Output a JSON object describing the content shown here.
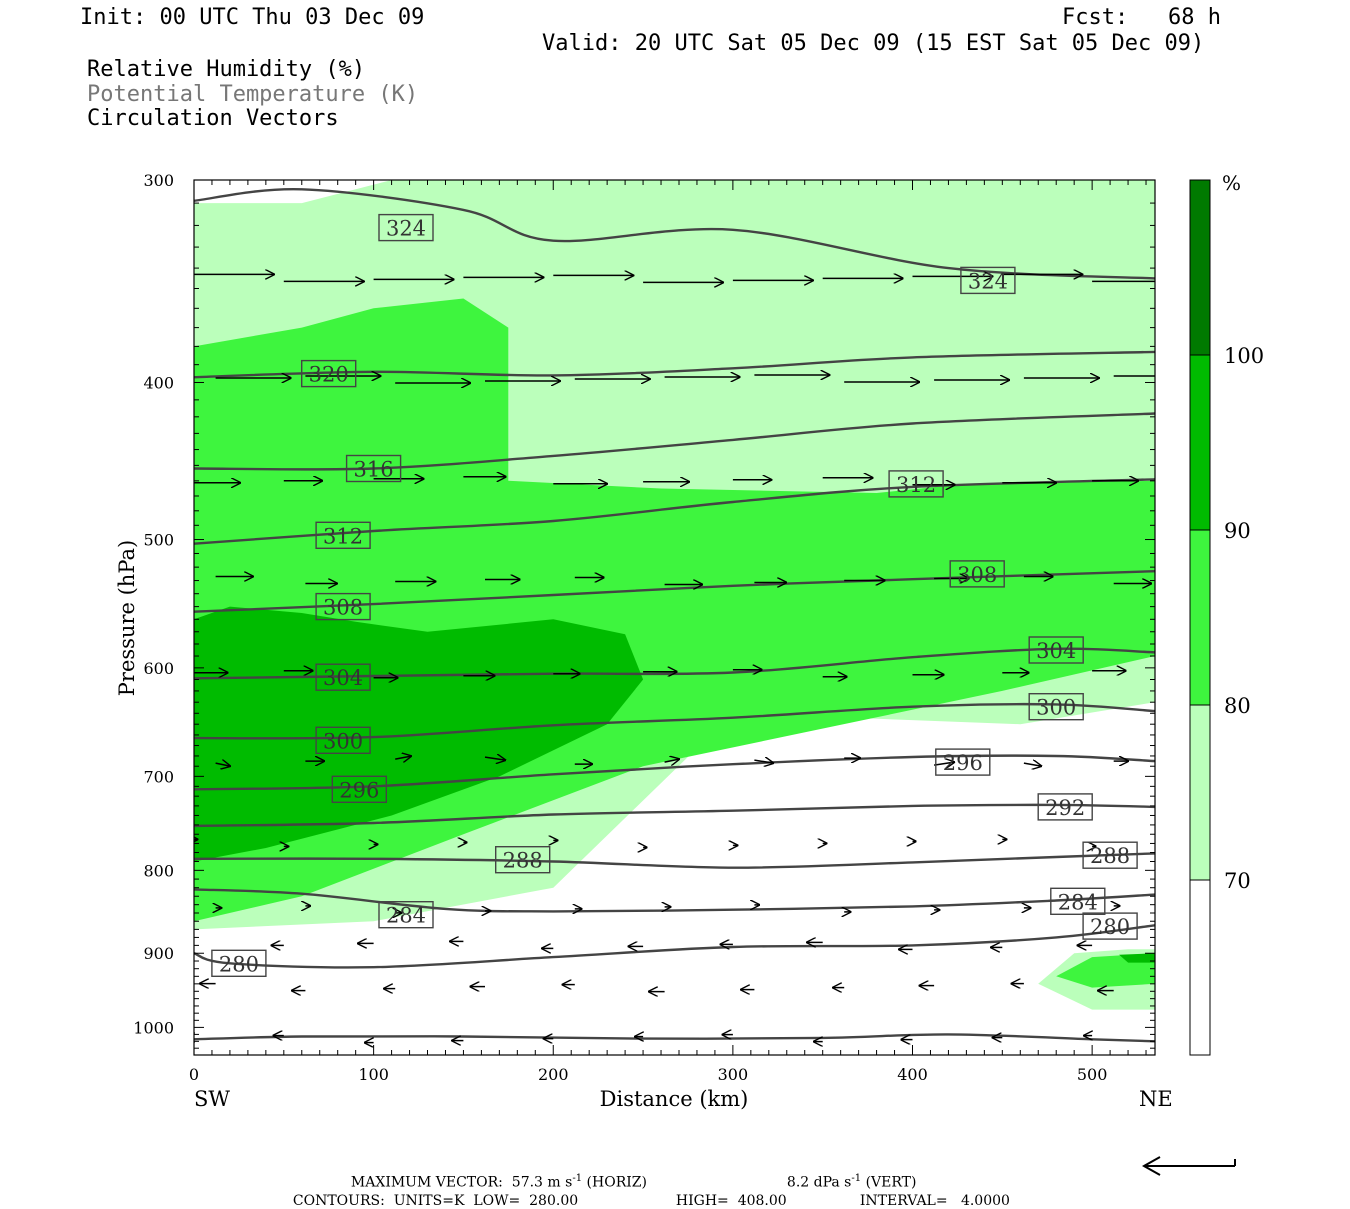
{
  "header": {
    "init": "Init: 00 UTC Thu 03 Dec 09",
    "fcst": "Fcst:   68 h",
    "valid": "Valid: 20 UTC Sat 05 Dec 09 (15 EST Sat 05 Dec 09)"
  },
  "legend_lines": {
    "rh": "Relative Humidity (%)",
    "theta": "Potential Temperature (K)",
    "vectors": "Circulation Vectors"
  },
  "colors": {
    "rh_70_80": "#bbffbb",
    "rh_80_90": "#3ef53e",
    "rh_90_100": "#00bb00",
    "rh_100_plus": "#007a00",
    "contour": "#444444",
    "vector": "#000000"
  },
  "colorbar": {
    "unit": "%",
    "ticks": [
      "100",
      "90",
      "80",
      "70"
    ]
  },
  "chart_data": {
    "type": "heatmap",
    "xlabel": "Distance (km)",
    "ylabel": "Pressure (hPa)",
    "xlim": [
      0,
      535
    ],
    "ylim": [
      1040,
      300
    ],
    "y_scale": "log-pressure",
    "x_ticks": [
      "0",
      "100",
      "200",
      "300",
      "400",
      "500"
    ],
    "y_ticks": [
      "300",
      "400",
      "500",
      "600",
      "700",
      "800",
      "900",
      "1000"
    ],
    "x_end_labels": {
      "left": "SW",
      "right": "NE"
    },
    "rh_levels": [
      70,
      80,
      90,
      100
    ],
    "contour_labels": [
      {
        "value": "324",
        "x": 118,
        "p": 321
      },
      {
        "value": "324",
        "x": 442,
        "p": 346
      },
      {
        "value": "320",
        "x": 75,
        "p": 395
      },
      {
        "value": "316",
        "x": 100,
        "p": 452
      },
      {
        "value": "312",
        "x": 83,
        "p": 497
      },
      {
        "value": "312",
        "x": 402,
        "p": 462
      },
      {
        "value": "308",
        "x": 83,
        "p": 550
      },
      {
        "value": "308",
        "x": 436,
        "p": 525
      },
      {
        "value": "304",
        "x": 83,
        "p": 608
      },
      {
        "value": "304",
        "x": 480,
        "p": 585
      },
      {
        "value": "300",
        "x": 83,
        "p": 665
      },
      {
        "value": "300",
        "x": 480,
        "p": 634
      },
      {
        "value": "296",
        "x": 92,
        "p": 713
      },
      {
        "value": "296",
        "x": 428,
        "p": 686
      },
      {
        "value": "292",
        "x": 485,
        "p": 731
      },
      {
        "value": "288",
        "x": 183,
        "p": 788
      },
      {
        "value": "288",
        "x": 510,
        "p": 783
      },
      {
        "value": "284",
        "x": 118,
        "p": 852
      },
      {
        "value": "284",
        "x": 492,
        "p": 836
      },
      {
        "value": "280",
        "x": 25,
        "p": 913
      },
      {
        "value": "280",
        "x": 510,
        "p": 866
      }
    ],
    "theta_contours": [
      {
        "label": "324",
        "pts": [
          [
            0,
            309
          ],
          [
            60,
            304
          ],
          [
            150,
            313
          ],
          [
            200,
            327
          ],
          [
            300,
            322
          ],
          [
            420,
            340
          ],
          [
            535,
            345
          ]
        ]
      },
      {
        "label": "320",
        "pts": [
          [
            0,
            397
          ],
          [
            100,
            394
          ],
          [
            200,
            396
          ],
          [
            300,
            392
          ],
          [
            400,
            386
          ],
          [
            535,
            383
          ]
        ]
      },
      {
        "label": "316",
        "pts": [
          [
            0,
            452
          ],
          [
            100,
            452
          ],
          [
            200,
            444
          ],
          [
            300,
            434
          ],
          [
            400,
            424
          ],
          [
            535,
            418
          ]
        ]
      },
      {
        "label": "312",
        "pts": [
          [
            0,
            503
          ],
          [
            100,
            494
          ],
          [
            200,
            487
          ],
          [
            300,
            474
          ],
          [
            400,
            464
          ],
          [
            535,
            459
          ]
        ]
      },
      {
        "label": "308",
        "pts": [
          [
            0,
            554
          ],
          [
            100,
            548
          ],
          [
            200,
            541
          ],
          [
            300,
            534
          ],
          [
            400,
            529
          ],
          [
            535,
            523
          ]
        ]
      },
      {
        "label": "304",
        "pts": [
          [
            0,
            609
          ],
          [
            100,
            607
          ],
          [
            200,
            605
          ],
          [
            300,
            604
          ],
          [
            400,
            591
          ],
          [
            480,
            584
          ],
          [
            535,
            587
          ]
        ]
      },
      {
        "label": "300",
        "pts": [
          [
            0,
            663
          ],
          [
            100,
            662
          ],
          [
            200,
            651
          ],
          [
            300,
            644
          ],
          [
            400,
            634
          ],
          [
            480,
            632
          ],
          [
            535,
            638
          ]
        ]
      },
      {
        "label": "296",
        "pts": [
          [
            0,
            713
          ],
          [
            100,
            710
          ],
          [
            200,
            698
          ],
          [
            300,
            688
          ],
          [
            400,
            681
          ],
          [
            480,
            680
          ],
          [
            535,
            685
          ]
        ]
      },
      {
        "label": "292",
        "pts": [
          [
            0,
            751
          ],
          [
            100,
            748
          ],
          [
            200,
            739
          ],
          [
            300,
            735
          ],
          [
            400,
            730
          ],
          [
            480,
            729
          ],
          [
            535,
            731
          ]
        ]
      },
      {
        "label": "288",
        "pts": [
          [
            0,
            787
          ],
          [
            100,
            787
          ],
          [
            200,
            790
          ],
          [
            300,
            797
          ],
          [
            400,
            791
          ],
          [
            480,
            785
          ],
          [
            535,
            781
          ]
        ]
      },
      {
        "label": "284",
        "pts": [
          [
            0,
            822
          ],
          [
            60,
            827
          ],
          [
            140,
            845
          ],
          [
            200,
            848
          ],
          [
            300,
            846
          ],
          [
            400,
            842
          ],
          [
            480,
            835
          ],
          [
            535,
            828
          ]
        ]
      },
      {
        "label": "280",
        "pts": [
          [
            0,
            900
          ],
          [
            20,
            913
          ],
          [
            100,
            918
          ],
          [
            200,
            905
          ],
          [
            300,
            892
          ],
          [
            400,
            890
          ],
          [
            480,
            880
          ],
          [
            535,
            865
          ]
        ]
      },
      {
        "label": "",
        "pts": [
          [
            0,
            1017
          ],
          [
            60,
            1013
          ],
          [
            150,
            1013
          ],
          [
            250,
            1016
          ],
          [
            350,
            1015
          ],
          [
            420,
            1010
          ],
          [
            500,
            1017
          ],
          [
            535,
            1020
          ]
        ]
      }
    ],
    "rh_regions": [
      {
        "level": "70-80",
        "outline": [
          [
            0,
            870
          ],
          [
            0,
            310
          ],
          [
            60,
            310
          ],
          [
            110,
            300
          ],
          [
            160,
            300
          ],
          [
            170,
            300
          ],
          [
            250,
            300
          ],
          [
            400,
            300
          ],
          [
            535,
            300
          ],
          [
            535,
            630
          ],
          [
            460,
            650
          ],
          [
            300,
            640
          ],
          [
            200,
            820
          ],
          [
            100,
            860
          ]
        ]
      },
      {
        "level": "80-90",
        "outline": [
          [
            0,
            860
          ],
          [
            0,
            380
          ],
          [
            60,
            370
          ],
          [
            100,
            360
          ],
          [
            150,
            355
          ],
          [
            175,
            370
          ],
          [
            175,
            460
          ],
          [
            260,
            465
          ],
          [
            380,
            468
          ],
          [
            430,
            462
          ],
          [
            535,
            460
          ],
          [
            535,
            590
          ],
          [
            450,
            620
          ],
          [
            250,
            690
          ],
          [
            150,
            760
          ],
          [
            60,
            830
          ]
        ]
      },
      {
        "level": "90-100",
        "outline": [
          [
            0,
            790
          ],
          [
            0,
            560
          ],
          [
            20,
            550
          ],
          [
            60,
            555
          ],
          [
            90,
            562
          ],
          [
            130,
            570
          ],
          [
            200,
            560
          ],
          [
            240,
            572
          ],
          [
            250,
            610
          ],
          [
            230,
            650
          ],
          [
            170,
            700
          ],
          [
            110,
            740
          ],
          [
            40,
            775
          ]
        ]
      },
      {
        "level": "70-80",
        "outline": [
          [
            470,
            940
          ],
          [
            490,
            900
          ],
          [
            520,
            895
          ],
          [
            535,
            895
          ],
          [
            535,
            975
          ],
          [
            500,
            975
          ]
        ]
      },
      {
        "level": "80-90",
        "outline": [
          [
            480,
            930
          ],
          [
            500,
            905
          ],
          [
            535,
            900
          ],
          [
            535,
            940
          ],
          [
            500,
            945
          ]
        ]
      },
      {
        "level": "90-100",
        "outline": [
          [
            515,
            902
          ],
          [
            535,
            900
          ],
          [
            535,
            912
          ],
          [
            520,
            912
          ]
        ]
      }
    ],
    "vectors": {
      "max_vector_horiz": "57.3",
      "max_vector_vert": "8.2"
    },
    "contour_info": {
      "units": "K",
      "low": "280.00",
      "high": "408.00",
      "interval": "4.0000"
    }
  },
  "footer": {
    "max_vector_label": "MAXIMUM VECTOR:",
    "max_vector_horiz_value": "57.3",
    "max_vector_horiz_unit_a": "m s",
    "max_vector_horiz_exp": "-1",
    "max_vector_horiz_tag": "(HORIZ)",
    "max_vector_vert_value": "8.2",
    "max_vector_vert_unit_a": "dPa s",
    "max_vector_vert_exp": "-1",
    "max_vector_vert_tag": "(VERT)",
    "contours_label": "CONTOURS:",
    "units_text": "UNITS=K",
    "low_label": "LOW=",
    "low_value": "280.00",
    "high_label": "HIGH=",
    "high_value": "408.00",
    "interval_label": "INTERVAL=",
    "interval_value": "4.0000"
  }
}
